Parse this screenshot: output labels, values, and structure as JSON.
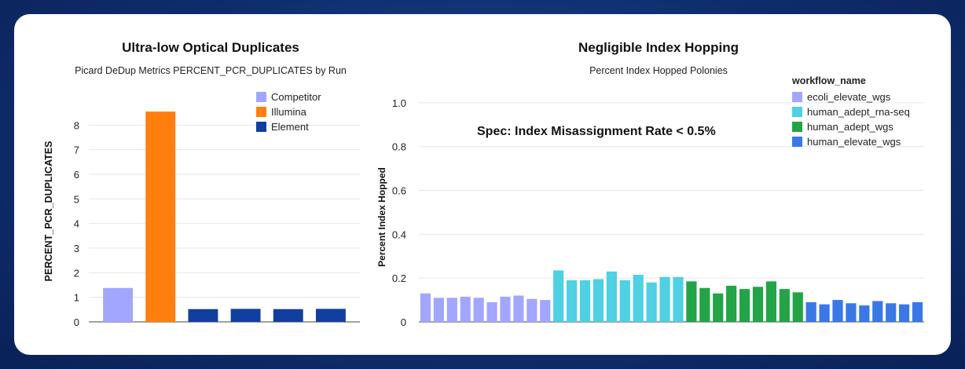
{
  "chart_data": [
    {
      "type": "bar",
      "title": "Ultra-low Optical Duplicates",
      "subtitle": "Picard DeDup Metrics PERCENT_PCR_DUPLICATES by Run",
      "xlabel": "",
      "ylabel": "PERCENT_PCR_DUPLICATES",
      "ylim": [
        0,
        9
      ],
      "yticks": [
        0,
        1,
        2,
        3,
        4,
        5,
        6,
        7,
        8
      ],
      "grid": true,
      "legend_position": "top-right",
      "legend": [
        {
          "name": "Competitor",
          "color": "#a3a6ff"
        },
        {
          "name": "Illumina",
          "color": "#ff7f0e"
        },
        {
          "name": "Element",
          "color": "#113f9e"
        }
      ],
      "bars": [
        {
          "group": "Competitor",
          "value": 1.38
        },
        {
          "group": "Illumina",
          "value": 8.55
        },
        {
          "group": "Element",
          "value": 0.52
        },
        {
          "group": "Element",
          "value": 0.53
        },
        {
          "group": "Element",
          "value": 0.52
        },
        {
          "group": "Element",
          "value": 0.53
        }
      ]
    },
    {
      "type": "bar",
      "title": "Negligible Index Hopping",
      "subtitle": "Percent Index Hopped Polonies",
      "xlabel": "",
      "ylabel": "Percent Index Hopped",
      "ylim": [
        0,
        1.1
      ],
      "yticks": [
        "0",
        "0.2",
        "0.4",
        "0.6",
        "0.8",
        "1.0"
      ],
      "grid": true,
      "annotation": "Spec: Index Misassignment Rate < 0.5%",
      "legend_title": "workflow_name",
      "legend_position": "top-right",
      "series": [
        {
          "name": "ecoli_elevate_wgs",
          "color": "#a3a6ff",
          "values": [
            0.13,
            0.11,
            0.11,
            0.115,
            0.11,
            0.09,
            0.115,
            0.12,
            0.105,
            0.1
          ]
        },
        {
          "name": "human_adept_rna-seq",
          "color": "#4fd0e3",
          "values": [
            0.235,
            0.19,
            0.19,
            0.195,
            0.23,
            0.19,
            0.215,
            0.18,
            0.205,
            0.205
          ]
        },
        {
          "name": "human_adept_wgs",
          "color": "#22a447",
          "values": [
            0.185,
            0.155,
            0.13,
            0.165,
            0.15,
            0.16,
            0.185,
            0.15,
            0.135
          ]
        },
        {
          "name": "human_elevate_wgs",
          "color": "#3a78e6",
          "values": [
            0.09,
            0.08,
            0.1,
            0.085,
            0.075,
            0.095,
            0.085,
            0.08,
            0.09
          ]
        }
      ]
    }
  ]
}
